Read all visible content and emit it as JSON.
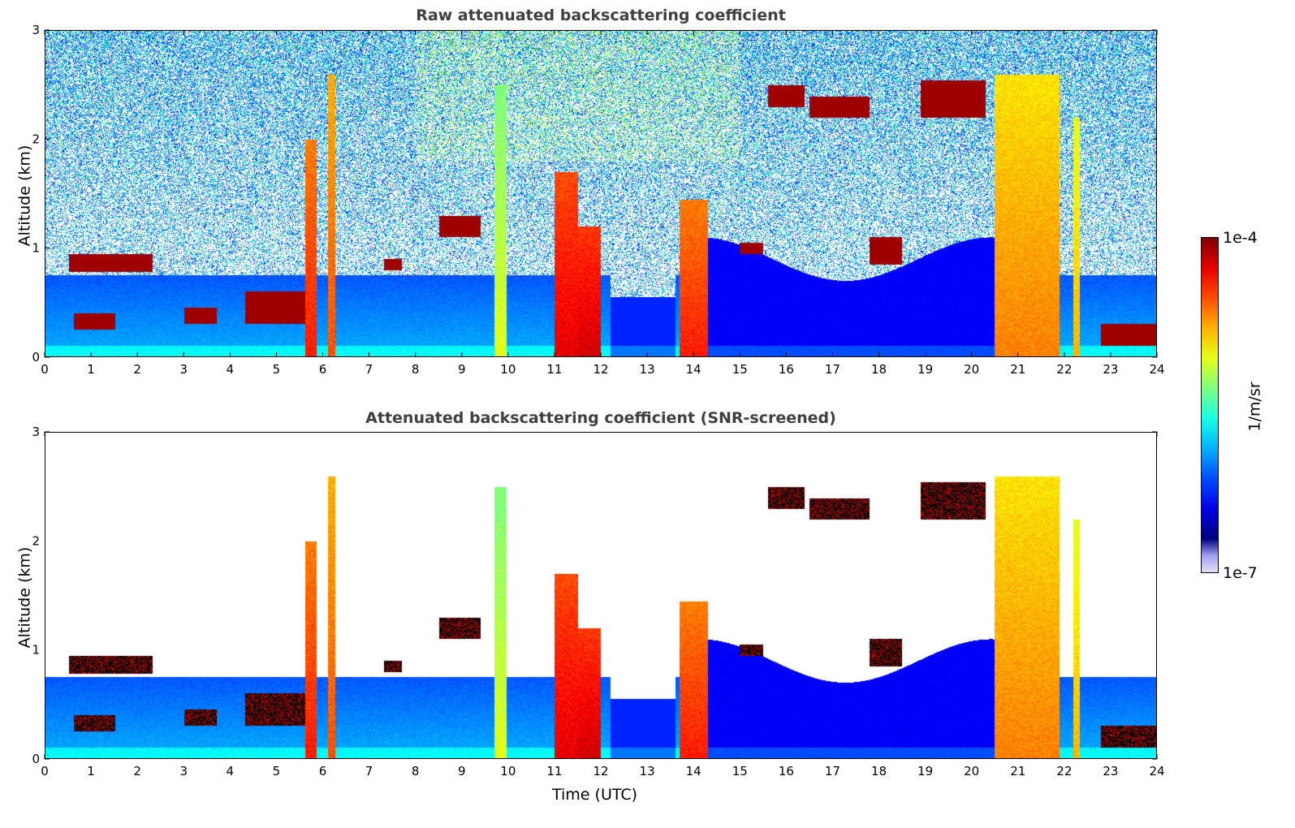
{
  "panels": [
    {
      "title": "Raw attenuated backscattering coefficient",
      "ylabel": "Altitude (km)",
      "mode": "raw"
    },
    {
      "title": "Attenuated backscattering coefficient (SNR-screened)",
      "ylabel": "Altitude (km)",
      "xlabel": "Time (UTC)",
      "mode": "screened"
    }
  ],
  "colorbar": {
    "max_label": "1e-4",
    "min_label": "1e-7",
    "unit_label": "1/m/sr",
    "colormap": "jet"
  },
  "chart_data": [
    {
      "type": "heatmap",
      "title": "Raw attenuated backscattering coefficient",
      "xlabel": "",
      "ylabel": "Altitude (km)",
      "xlim": [
        0,
        24
      ],
      "ylim": [
        0,
        3
      ],
      "xticks": [
        0,
        1,
        2,
        3,
        4,
        5,
        6,
        7,
        8,
        9,
        10,
        11,
        12,
        13,
        14,
        15,
        16,
        17,
        18,
        19,
        20,
        21,
        22,
        23,
        24
      ],
      "yticks": [
        0,
        1,
        2,
        3
      ],
      "colorscale_range": [
        "1e-7",
        "1e-4"
      ],
      "features": [
        {
          "name": "low cloud layer",
          "time": [
            0.5,
            2.3
          ],
          "altitude_km": [
            0.75,
            0.95
          ]
        },
        {
          "name": "precip/fog column",
          "time": [
            11.0,
            12.0
          ],
          "altitude_km": [
            0,
            1.7
          ]
        },
        {
          "name": "thick column",
          "time": [
            13.7,
            14.3
          ],
          "altitude_km": [
            0,
            1.4
          ]
        },
        {
          "name": "thick column",
          "time": [
            20.5,
            21.9
          ],
          "altitude_km": [
            0,
            2.6
          ]
        },
        {
          "name": "elevated layer",
          "time": [
            18.9,
            20.3
          ],
          "altitude_km": [
            2.2,
            2.6
          ]
        },
        {
          "name": "low layer",
          "time": [
            22.8,
            24.0
          ],
          "altitude_km": [
            0.1,
            0.3
          ]
        }
      ]
    },
    {
      "type": "heatmap",
      "title": "Attenuated backscattering coefficient (SNR-screened)",
      "xlabel": "Time (UTC)",
      "ylabel": "Altitude (km)",
      "xlim": [
        0,
        24
      ],
      "ylim": [
        0,
        3
      ],
      "xticks": [
        0,
        1,
        2,
        3,
        4,
        5,
        6,
        7,
        8,
        9,
        10,
        11,
        12,
        13,
        14,
        15,
        16,
        17,
        18,
        19,
        20,
        21,
        22,
        23,
        24
      ],
      "yticks": [
        0,
        1,
        2,
        3
      ],
      "colorscale_range": [
        "1e-7",
        "1e-4"
      ]
    }
  ]
}
